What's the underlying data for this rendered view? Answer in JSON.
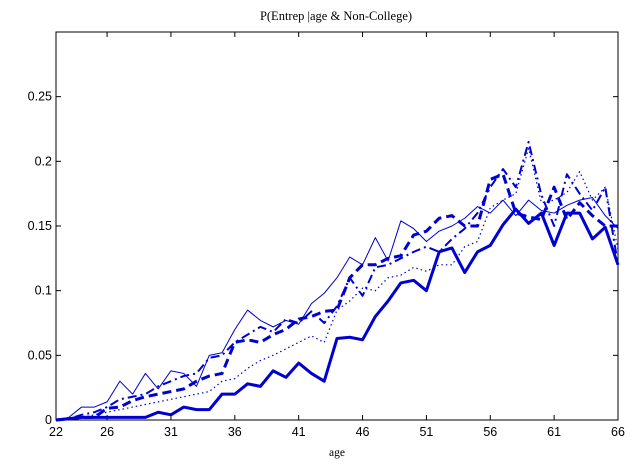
{
  "chart_data": {
    "type": "line",
    "title": "P(Entrep |age & Non-College)",
    "xlabel": "age",
    "ylabel": "",
    "xlim": [
      22,
      66
    ],
    "ylim": [
      0,
      0.3
    ],
    "xticks": [
      22,
      26,
      31,
      36,
      41,
      46,
      51,
      56,
      61,
      66
    ],
    "yticks": [
      0,
      0.05,
      0.1,
      0.15,
      0.2,
      0.25
    ],
    "ytick_labels": [
      "0",
      "0.05",
      "0.1",
      "0.15",
      "0.2",
      "0.25"
    ],
    "grid": false,
    "color": "#0000d0",
    "x": [
      22,
      23,
      24,
      25,
      26,
      27,
      28,
      29,
      30,
      31,
      32,
      33,
      34,
      35,
      36,
      37,
      38,
      39,
      40,
      41,
      42,
      43,
      44,
      45,
      46,
      47,
      48,
      49,
      50,
      51,
      52,
      53,
      54,
      55,
      56,
      57,
      58,
      59,
      60,
      61,
      62,
      63,
      64,
      65,
      66
    ],
    "series": [
      {
        "style": "thick-solid",
        "values": [
          0,
          0.001,
          0.002,
          0.002,
          0.002,
          0.002,
          0.002,
          0.002,
          0.006,
          0.004,
          0.01,
          0.008,
          0.008,
          0.02,
          0.02,
          0.028,
          0.026,
          0.038,
          0.033,
          0.044,
          0.036,
          0.03,
          0.063,
          0.064,
          0.062,
          0.08,
          0.092,
          0.106,
          0.108,
          0.1,
          0.13,
          0.133,
          0.114,
          0.13,
          0.135,
          0.151,
          0.163,
          0.152,
          0.16,
          0.135,
          0.16,
          0.16,
          0.14,
          0.149,
          0.12
        ]
      },
      {
        "style": "thin-solid",
        "values": [
          0,
          0.002,
          0.01,
          0.01,
          0.014,
          0.03,
          0.02,
          0.036,
          0.024,
          0.038,
          0.036,
          0.026,
          0.05,
          0.052,
          0.07,
          0.085,
          0.077,
          0.072,
          0.077,
          0.074,
          0.09,
          0.098,
          0.11,
          0.126,
          0.12,
          0.141,
          0.123,
          0.154,
          0.148,
          0.138,
          0.146,
          0.15,
          0.156,
          0.165,
          0.16,
          0.17,
          0.158,
          0.17,
          0.162,
          0.16,
          0.166,
          0.17,
          0.172,
          0.158,
          0.148
        ]
      },
      {
        "style": "thick-dashed",
        "values": [
          0,
          0.001,
          0.002,
          0.002,
          0.009,
          0.01,
          0.015,
          0.018,
          0.02,
          0.022,
          0.024,
          0.03,
          0.034,
          0.036,
          0.06,
          0.062,
          0.06,
          0.066,
          0.07,
          0.078,
          0.08,
          0.084,
          0.085,
          0.11,
          0.12,
          0.12,
          0.125,
          0.127,
          0.143,
          0.146,
          0.156,
          0.158,
          0.15,
          0.15,
          0.186,
          0.19,
          0.16,
          0.157,
          0.155,
          0.18,
          0.155,
          0.168,
          0.158,
          0.15,
          0.15
        ]
      },
      {
        "style": "dash-dot",
        "values": [
          0,
          0.001,
          0.004,
          0.006,
          0.01,
          0.016,
          0.018,
          0.02,
          0.026,
          0.03,
          0.034,
          0.036,
          0.048,
          0.05,
          0.06,
          0.066,
          0.072,
          0.068,
          0.078,
          0.075,
          0.084,
          0.075,
          0.088,
          0.11,
          0.096,
          0.118,
          0.12,
          0.125,
          0.13,
          0.134,
          0.13,
          0.14,
          0.148,
          0.16,
          0.18,
          0.194,
          0.18,
          0.215,
          0.174,
          0.15,
          0.19,
          0.175,
          0.162,
          0.18,
          0.12
        ]
      },
      {
        "style": "dotted",
        "values": [
          0,
          0.001,
          0.002,
          0.004,
          0.006,
          0.008,
          0.01,
          0.012,
          0.014,
          0.016,
          0.018,
          0.02,
          0.022,
          0.03,
          0.032,
          0.04,
          0.046,
          0.05,
          0.055,
          0.06,
          0.065,
          0.06,
          0.085,
          0.092,
          0.102,
          0.1,
          0.11,
          0.112,
          0.118,
          0.115,
          0.12,
          0.12,
          0.134,
          0.138,
          0.164,
          0.17,
          0.175,
          0.21,
          0.168,
          0.17,
          0.176,
          0.192,
          0.17,
          0.18,
          0.132
        ]
      }
    ]
  }
}
